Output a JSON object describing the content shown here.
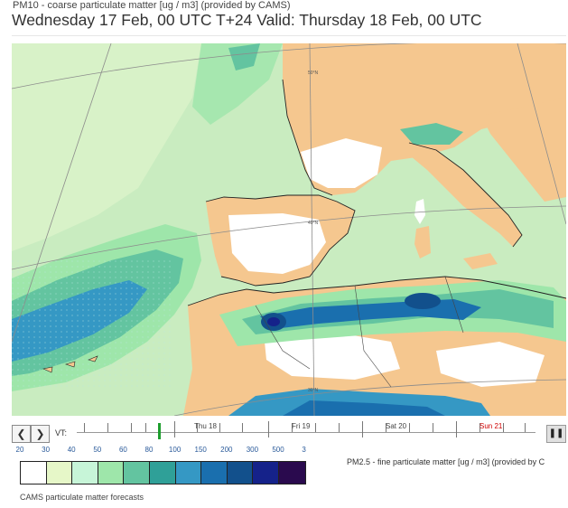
{
  "header": {
    "subtitle": "PM10 - coarse particulate matter [ug / m3] (provided by CAMS)",
    "title": "Wednesday 17 Feb, 00 UTC T+24 Valid: Thursday 18 Feb, 00 UTC"
  },
  "map": {
    "lat_labels": [
      "50°N",
      "40°N",
      "30°N"
    ],
    "colors": {
      "sea": "#c9ecc0",
      "land": "#f5c78f",
      "clean": "#ffffff",
      "light_green": "#9ee6aa",
      "teal": "#5bbfa0",
      "blue": "#1a78b0",
      "dark_blue": "#0c3e8a",
      "navy": "#0d1f70"
    }
  },
  "timeline": {
    "prev_icon": "chevron-left-icon",
    "next_icon": "chevron-right-icon",
    "prev_label": "❮",
    "next_label": "❯",
    "vt_label": "VT:",
    "days": [
      "Thu 18",
      "Fri 19",
      "Sat 20",
      "Sun 21"
    ],
    "highlight_day": "Sun 21",
    "pause_icon": "pause-icon",
    "pause_label": "❚❚"
  },
  "legend": {
    "labels": [
      "20",
      "30",
      "40",
      "50",
      "60",
      "80",
      "100",
      "150",
      "200",
      "300",
      "500",
      "3"
    ],
    "colors": [
      "#ffffff",
      "#e6f7c8",
      "#c7f5d8",
      "#9ee6aa",
      "#63c4a0",
      "#2fa098",
      "#3598c4",
      "#1a6fae",
      "#12508c",
      "#15228a",
      "#2a0a4e"
    ],
    "pm25_note": "PM2.5 - fine particulate matter [ug / m3] (provided by C"
  },
  "footer": {
    "text": "CAMS particulate matter forecasts"
  }
}
